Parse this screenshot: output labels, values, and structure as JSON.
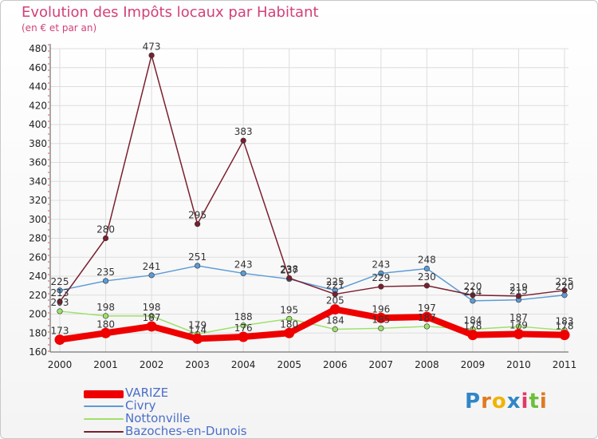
{
  "title": "Evolution des Impôts locaux par Habitant",
  "subtitle": "(en € et par an)",
  "brand": "Proxiti",
  "chart_data": {
    "type": "line",
    "title": "Evolution des Impôts locaux par Habitant",
    "ylabel": "(en € et par an)",
    "xlabel": "",
    "ylim": [
      160,
      480
    ],
    "yticks": [
      160,
      180,
      200,
      220,
      240,
      260,
      280,
      300,
      320,
      340,
      360,
      380,
      400,
      420,
      440,
      460,
      480
    ],
    "grid": true,
    "legend_position": "bottom-left",
    "x": [
      "2000",
      "2001",
      "2002",
      "2003",
      "2004",
      "2005",
      "2006",
      "2007",
      "2008",
      "2009",
      "2010",
      "2011"
    ],
    "series": [
      {
        "name": "VARIZE",
        "color": "#ee0000",
        "values": [
          173,
          180,
          187,
          174,
          176,
          180,
          205,
          196,
          197,
          178,
          179,
          178
        ]
      },
      {
        "name": "Civry",
        "color": "#5b9bd5",
        "values": [
          225,
          235,
          241,
          251,
          243,
          237,
          225,
          243,
          248,
          214,
          215,
          220
        ]
      },
      {
        "name": "Nottonville",
        "color": "#9ee06a",
        "values": [
          203,
          198,
          198,
          179,
          188,
          195,
          184,
          185,
          187,
          184,
          187,
          183
        ]
      },
      {
        "name": "Bazoches-en-Dunois",
        "color": "#7a1f2e",
        "values": [
          213,
          280,
          473,
          295,
          383,
          238,
          221,
          229,
          230,
          220,
          219,
          225
        ]
      }
    ]
  }
}
